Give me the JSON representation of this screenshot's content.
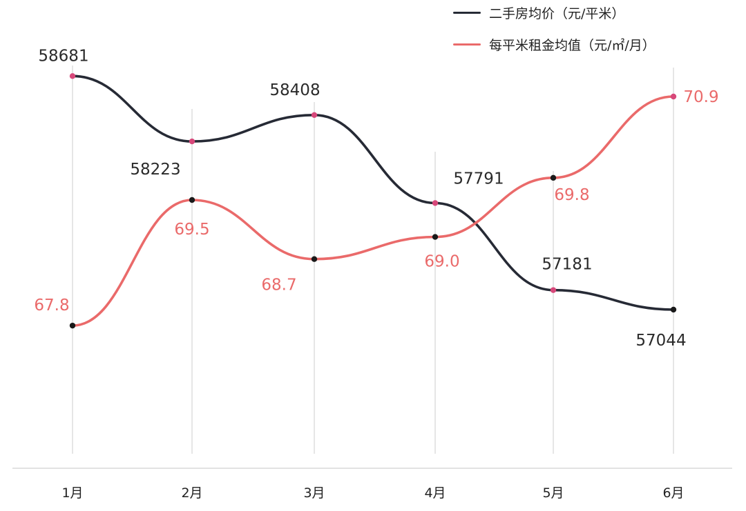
{
  "chart_data": {
    "type": "line",
    "categories": [
      "1月",
      "2月",
      "3月",
      "4月",
      "5月",
      "6月"
    ],
    "series": [
      {
        "name": "二手房均价（元/平米）",
        "color": "#262a35",
        "values": [
          58681,
          58223,
          58408,
          57791,
          57181,
          57044
        ],
        "labels": [
          "58681",
          "58223",
          "58408",
          "57791",
          "57181",
          "57044"
        ],
        "ylim": [
          56000,
          58900
        ]
      },
      {
        "name": "每平米租金均值（元/㎡/月）",
        "color": "#ea6a6a",
        "values": [
          67.8,
          69.5,
          68.7,
          69.0,
          69.8,
          70.9
        ],
        "labels": [
          "67.8",
          "69.5",
          "68.7",
          "69.0",
          "69.8",
          "70.9"
        ],
        "ylim": [
          66.0,
          71.6
        ]
      }
    ],
    "marker_colors": {
      "dark_dot": "#1a1a1a",
      "pink_dot": "#d7487a"
    },
    "grid": true,
    "legend_position": "top-right",
    "title": "",
    "xlabel": "",
    "ylabel": ""
  }
}
